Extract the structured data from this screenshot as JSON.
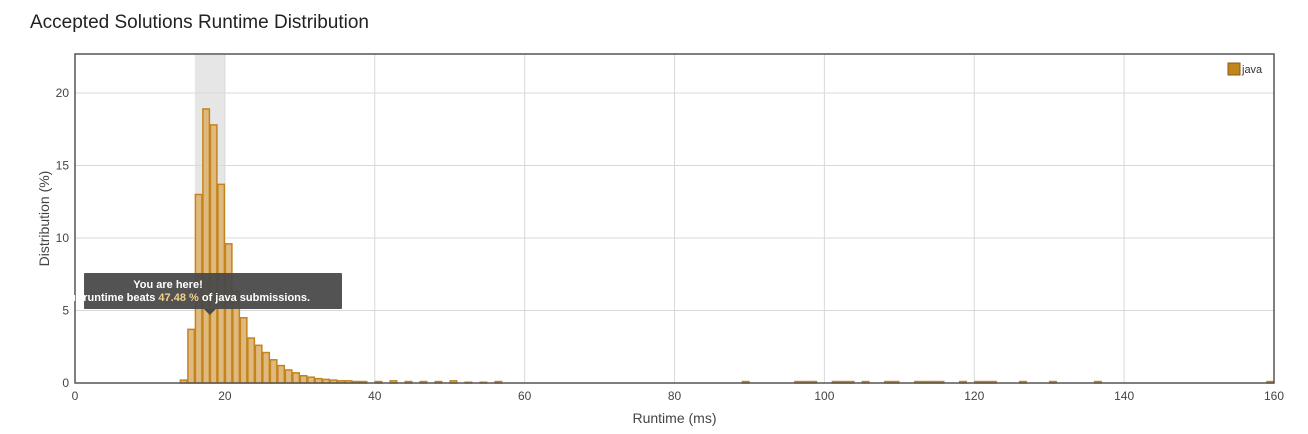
{
  "title": "Accepted Solutions Runtime Distribution",
  "chart_data": {
    "type": "bar",
    "xlabel": "Runtime (ms)",
    "ylabel": "Distribution (%)",
    "xlim": [
      0,
      160
    ],
    "ylim": [
      0,
      20
    ],
    "xticks": [
      "0",
      "20",
      "40",
      "60",
      "80",
      "100",
      "120",
      "140",
      "160"
    ],
    "yticks": [
      "0",
      "5",
      "10",
      "15",
      "20"
    ],
    "grid": true,
    "legend": {
      "position": "top-right",
      "entries": [
        "java"
      ]
    },
    "series": [
      {
        "name": "java",
        "color": "#c4841d",
        "fill": "#e0b97f",
        "x": [
          14,
          15,
          16,
          17,
          18,
          19,
          20,
          21,
          22,
          23,
          24,
          25,
          26,
          27,
          28,
          29,
          30,
          31,
          32,
          33,
          34,
          35,
          36,
          37,
          38,
          40,
          42,
          44,
          46,
          48,
          50,
          52,
          54,
          56,
          89,
          96,
          97,
          98,
          101,
          102,
          103,
          105,
          108,
          109,
          112,
          113,
          114,
          115,
          118,
          120,
          121,
          122,
          126,
          130,
          136,
          159
        ],
        "values": [
          0.2,
          3.7,
          13.0,
          18.9,
          17.8,
          13.7,
          9.6,
          6.3,
          4.5,
          3.1,
          2.6,
          2.1,
          1.6,
          1.2,
          0.9,
          0.7,
          0.5,
          0.4,
          0.3,
          0.25,
          0.2,
          0.15,
          0.15,
          0.1,
          0.1,
          0.1,
          0.15,
          0.1,
          0.1,
          0.1,
          0.15,
          0.05,
          0.05,
          0.1,
          0.1,
          0.1,
          0.1,
          0.1,
          0.1,
          0.1,
          0.1,
          0.1,
          0.1,
          0.1,
          0.1,
          0.1,
          0.1,
          0.1,
          0.1,
          0.1,
          0.1,
          0.1,
          0.1,
          0.1,
          0.1,
          0.1
        ],
        "highlight_range": [
          16,
          20
        ]
      }
    ],
    "tooltip": {
      "line1": "You are here!",
      "line2_prefix": "Your runtime beats ",
      "value": "47.48 %",
      "line2_suffix": " of java submissions."
    }
  }
}
